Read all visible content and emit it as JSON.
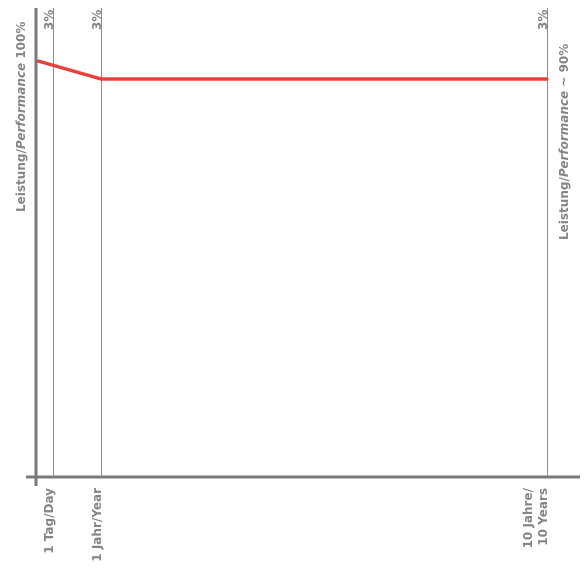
{
  "chart_data": {
    "type": "line",
    "xlabel": "",
    "ylabel_left": "Leistung/Performance 100%",
    "ylabel_left_parts": {
      "plain": "Leistung/",
      "italic": "Performance",
      "tail": " 100%"
    },
    "ylabel_right": "Leistung/Performance ~ 90%",
    "ylabel_right_parts": {
      "plain": "Leistung/",
      "italic": "Performance",
      "tail": " ~ 90%"
    },
    "milestones": [
      {
        "x": "1 Tag/Day",
        "label_lines": [
          "1 Tag/Day"
        ],
        "top_label": "3%"
      },
      {
        "x": "1 Jahr/Year",
        "label_lines": [
          "1 Jahr/Year"
        ],
        "top_label": "3%"
      },
      {
        "x": "10 Jahre/10 Years",
        "label_lines": [
          "10 Jahre/",
          "10 Years"
        ],
        "top_label": "3%"
      }
    ],
    "series": [
      {
        "color": "#e8413a",
        "points": [
          {
            "x": "start",
            "y": 100
          },
          {
            "x": "1 Jahr/Year",
            "y": 97
          },
          {
            "x": "10 Jahre/10 Years",
            "y": 97
          }
        ]
      }
    ],
    "ylim": [
      0,
      100
    ],
    "grid": false
  }
}
